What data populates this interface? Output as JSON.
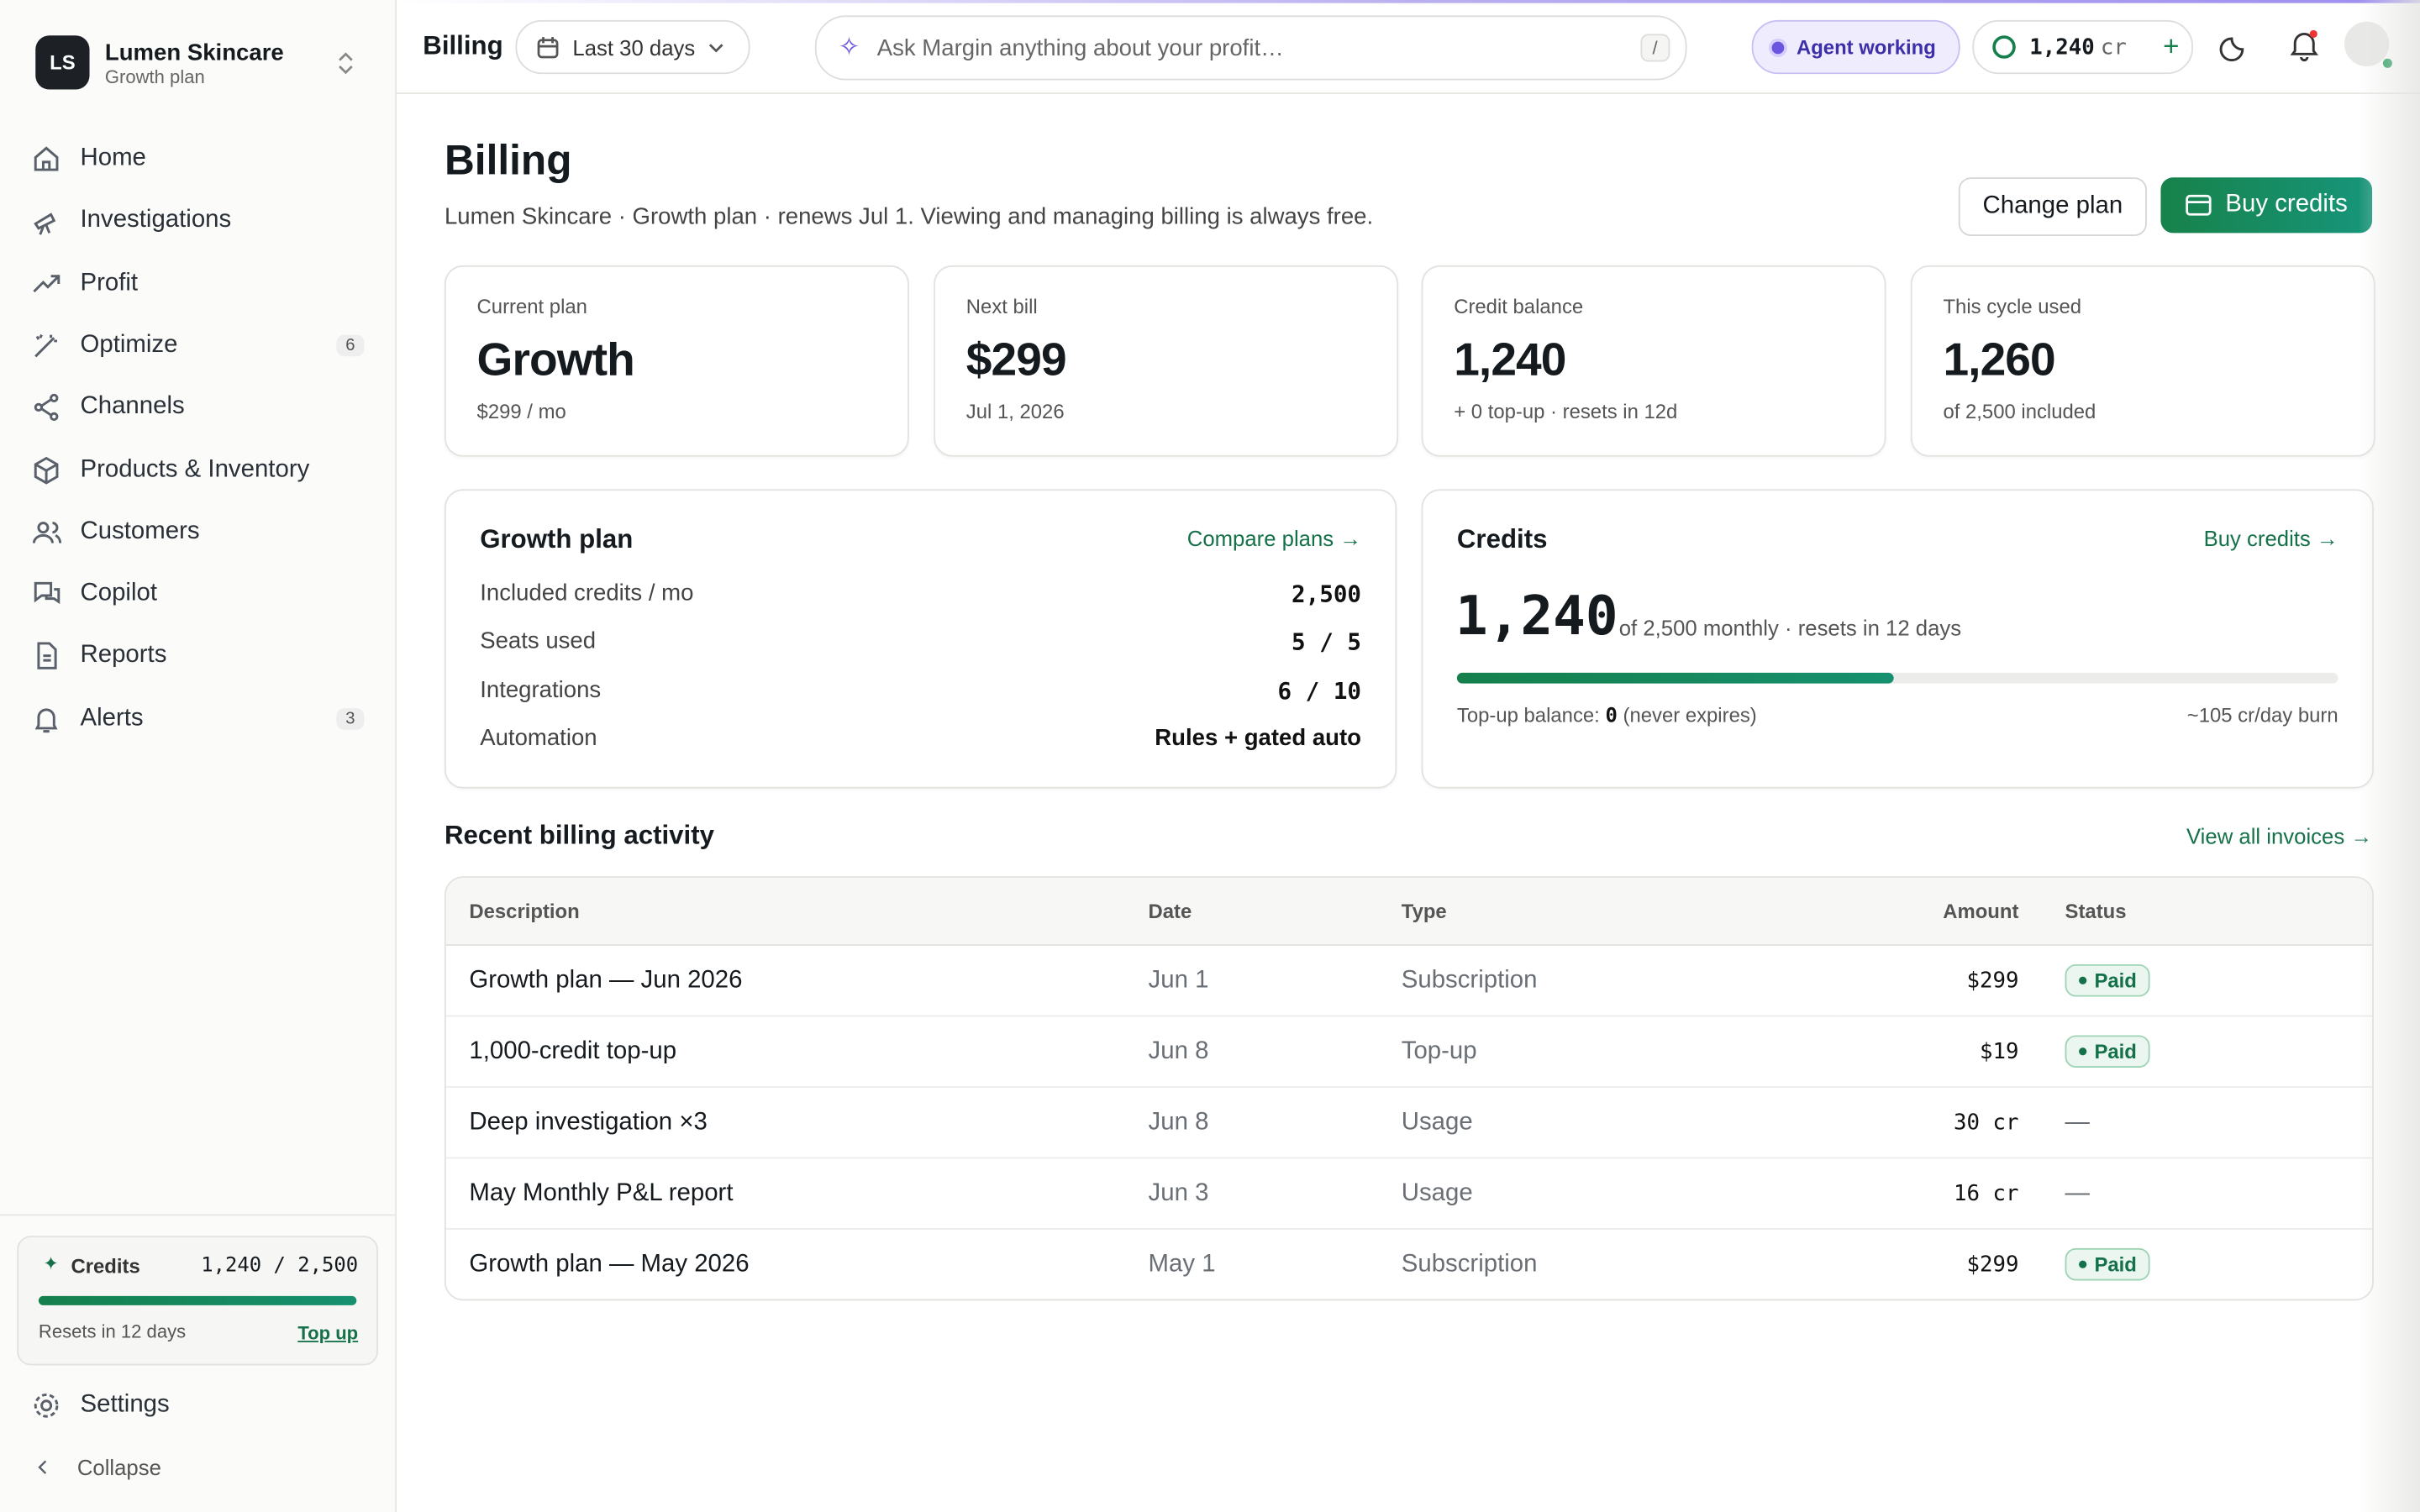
{
  "sidebar": {
    "org": {
      "initials": "LS",
      "name": "Lumen Skincare",
      "plan": "Growth plan"
    },
    "nav": [
      {
        "label": "Home"
      },
      {
        "label": "Investigations"
      },
      {
        "label": "Profit"
      },
      {
        "label": "Optimize",
        "badge": "6"
      },
      {
        "label": "Channels"
      },
      {
        "label": "Products & Inventory"
      },
      {
        "label": "Customers"
      },
      {
        "label": "Copilot"
      },
      {
        "label": "Reports"
      },
      {
        "label": "Alerts",
        "badge": "3"
      }
    ],
    "credits": {
      "label": "Credits",
      "value": "1,240 / 2,500",
      "resets": "Resets in 12 days",
      "action": "Top up"
    },
    "settings": "Settings",
    "collapse": "Collapse"
  },
  "topbar": {
    "title": "Billing",
    "range": "Last 30 days",
    "search": "Ask Margin anything about your profit…",
    "shortcut": "/",
    "agent": "Agent working",
    "credits": "1,240",
    "credits_unit": "cr"
  },
  "header": {
    "title": "Billing",
    "subtitle": "Lumen Skincare · Growth plan · renews Jul 1. Viewing and managing billing is always free.",
    "actions": [
      "Change plan",
      "Buy credits"
    ]
  },
  "stats": [
    {
      "label": "Current plan",
      "value": "Growth",
      "note": "$299 / mo"
    },
    {
      "label": "Next bill",
      "value": "$299",
      "note": "Jul 1, 2026"
    },
    {
      "label": "Credit balance",
      "value": "1,240",
      "note": "+ 0 top-up · resets in 12d"
    },
    {
      "label": "This cycle used",
      "value": "1,260",
      "note": "of 2,500 included"
    }
  ],
  "plan_card": {
    "title": "Growth plan",
    "link": "Compare plans →",
    "rows": [
      [
        "Included credits / mo",
        "2,500"
      ],
      [
        "Seats used",
        "5 / 5"
      ],
      [
        "Integrations",
        "6 / 10"
      ],
      [
        "Automation",
        "Rules + gated auto"
      ]
    ]
  },
  "credits_card": {
    "title": "Credits",
    "link": "Buy credits →",
    "value": "1,240",
    "note": "of 2,500 monthly · resets in 12 days",
    "topup_label": "Top-up balance:",
    "topup_value": "0",
    "topup_note": "(never expires)",
    "burn": "~105 cr/day burn"
  },
  "activity": {
    "title": "Recent billing activity",
    "link": "View all invoices →",
    "columns": [
      "Description",
      "Date",
      "Type",
      "Amount",
      "Status"
    ],
    "rows": [
      [
        "Growth plan — Jun 2026",
        "Jun 1",
        "Subscription",
        "$299",
        "Paid"
      ],
      [
        "1,000-credit top-up",
        "Jun 8",
        "Top-up",
        "$19",
        "Paid"
      ],
      [
        "Deep investigation ×3",
        "Jun 8",
        "Usage",
        "30 cr",
        "—"
      ],
      [
        "May Monthly P&L report",
        "Jun 3",
        "Usage",
        "16 cr",
        "—"
      ],
      [
        "Growth plan — May 2026",
        "May 1",
        "Subscription",
        "$299",
        "Paid"
      ]
    ]
  }
}
